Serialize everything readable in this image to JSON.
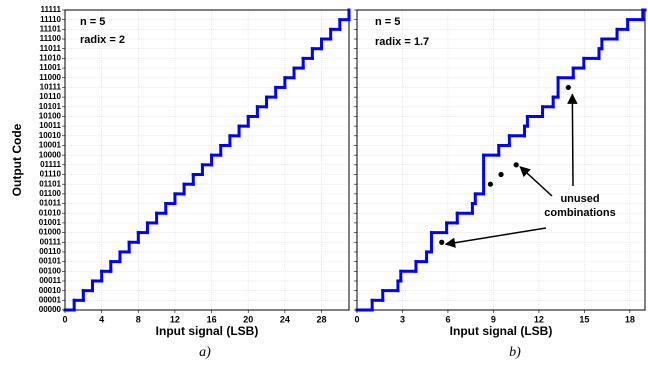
{
  "chart_data": [
    {
      "type": "step",
      "annotations": [
        "n = 5",
        "radix = 2"
      ],
      "xlabel": "Input signal (LSB)",
      "ylabel": "Output Code",
      "label": "a)",
      "color": "#0000ff",
      "grid": true,
      "x": [
        0,
        1,
        2,
        3,
        4,
        5,
        6,
        7,
        8,
        9,
        10,
        11,
        12,
        13,
        14,
        15,
        16,
        17,
        18,
        19,
        20,
        21,
        22,
        23,
        24,
        25,
        26,
        27,
        28,
        29,
        30,
        31
      ],
      "values": [
        0,
        1,
        2,
        3,
        4,
        5,
        6,
        7,
        8,
        9,
        10,
        11,
        12,
        13,
        14,
        15,
        16,
        17,
        18,
        19,
        20,
        21,
        22,
        23,
        24,
        25,
        26,
        27,
        28,
        29,
        30,
        31
      ],
      "xlim": [
        0,
        31
      ],
      "xticks": [
        0,
        4,
        8,
        12,
        16,
        20,
        24,
        28
      ],
      "ylim": [
        0,
        31
      ],
      "yticks": [
        {
          "value": 0,
          "label": "00000"
        },
        {
          "value": 1,
          "label": "00001"
        },
        {
          "value": 2,
          "label": "00010"
        },
        {
          "value": 3,
          "label": "00011"
        },
        {
          "value": 4,
          "label": "00100"
        },
        {
          "value": 5,
          "label": "00101"
        },
        {
          "value": 6,
          "label": "00110"
        },
        {
          "value": 7,
          "label": "00111"
        },
        {
          "value": 8,
          "label": "01000"
        },
        {
          "value": 9,
          "label": "01001"
        },
        {
          "value": 10,
          "label": "01010"
        },
        {
          "value": 11,
          "label": "01011"
        },
        {
          "value": 12,
          "label": "01100"
        },
        {
          "value": 13,
          "label": "01101"
        },
        {
          "value": 14,
          "label": "01110"
        },
        {
          "value": 15,
          "label": "01111"
        },
        {
          "value": 16,
          "label": "10000"
        },
        {
          "value": 17,
          "label": "10001"
        },
        {
          "value": 18,
          "label": "10010"
        },
        {
          "value": 19,
          "label": "10011"
        },
        {
          "value": 20,
          "label": "10100"
        },
        {
          "value": 21,
          "label": "10101"
        },
        {
          "value": 22,
          "label": "10110"
        },
        {
          "value": 23,
          "label": "10111"
        },
        {
          "value": 24,
          "label": "11000"
        },
        {
          "value": 25,
          "label": "11001"
        },
        {
          "value": 26,
          "label": "11010"
        },
        {
          "value": 27,
          "label": "11011"
        },
        {
          "value": 28,
          "label": "11100"
        },
        {
          "value": 29,
          "label": "11101"
        },
        {
          "value": 30,
          "label": "11110"
        },
        {
          "value": 31,
          "label": "11111"
        }
      ]
    },
    {
      "type": "step",
      "annotations": [
        "n = 5",
        "radix = 1.7",
        "unused",
        "combinations"
      ],
      "xlabel": "Input signal (LSB)",
      "label": "b)",
      "color": "#0000ff",
      "grid": true,
      "x": [
        0,
        1,
        1.7,
        2.7,
        2.89,
        3.89,
        4.59,
        4.913,
        5.913,
        6.613,
        7.613,
        7.803,
        8.352,
        9.352,
        10.052,
        11.052,
        11.242,
        12.242,
        12.942,
        13.265,
        14.265,
        14.965,
        15.965,
        16.155,
        17.155,
        17.855,
        18.855
      ],
      "values": [
        0,
        1,
        2,
        3,
        4,
        5,
        6,
        8,
        9,
        10,
        11,
        12,
        16,
        17,
        18,
        19,
        20,
        21,
        22,
        24,
        25,
        26,
        27,
        28,
        29,
        30,
        31
      ],
      "points": {
        "x": [
          5.59,
          8.803,
          9.503,
          10.503,
          13.942
        ],
        "values": [
          7,
          13,
          14,
          15,
          23
        ],
        "color": "#000000"
      },
      "xlim": [
        0,
        19
      ],
      "xticks": [
        0,
        3,
        6,
        9,
        12,
        15,
        18
      ],
      "ylim": [
        0,
        31
      ],
      "yticks": [
        0,
        1,
        2,
        3,
        4,
        5,
        6,
        7,
        8,
        9,
        10,
        11,
        12,
        13,
        14,
        15,
        16,
        17,
        18,
        19,
        20,
        21,
        22,
        23,
        24,
        25,
        26,
        27,
        28,
        29,
        30,
        31
      ]
    }
  ]
}
